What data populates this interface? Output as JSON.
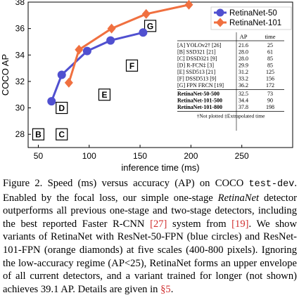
{
  "chart_data": {
    "type": "scatter",
    "xlabel": "inference time (ms)",
    "ylabel": "COCO AP",
    "xlim": [
      40,
      300
    ],
    "ylim": [
      27,
      38
    ],
    "x_ticks": [
      50,
      100,
      150,
      200,
      250
    ],
    "y_ticks": [
      28,
      30,
      32,
      34,
      36,
      38
    ],
    "grid": false,
    "legend_position": "top-right",
    "series": [
      {
        "name": "RetinaNet-50",
        "marker": "circle",
        "color": "#5050d0",
        "x": [
          63,
          73,
          98,
          121,
          153
        ],
        "y": [
          30.5,
          32.5,
          34.3,
          35.1,
          35.7
        ]
      },
      {
        "name": "RetinaNet-101",
        "marker": "diamond",
        "color": "#f07040",
        "x": [
          80,
          90,
          122,
          156,
          198
        ],
        "y": [
          31.9,
          34.4,
          36.0,
          37.1,
          37.8
        ]
      }
    ],
    "point_labels": [
      {
        "label": "B",
        "x": 50,
        "y": 28
      },
      {
        "label": "C",
        "x": 73,
        "y": 28
      },
      {
        "label": "D",
        "x": 73,
        "y": 30
      },
      {
        "label": "E",
        "x": 115,
        "y": 31
      },
      {
        "label": "F",
        "x": 142,
        "y": 33.2
      },
      {
        "label": "G",
        "x": 160,
        "y": 36.2
      }
    ],
    "table": {
      "headers": [
        "",
        "AP",
        "time"
      ],
      "rows": [
        {
          "name": "[A] YOLOv2† [26]",
          "ap": "21.6",
          "time": "25",
          "bold": false
        },
        {
          "name": "[B] SSD321 [21]",
          "ap": "28.0",
          "time": "61",
          "bold": false
        },
        {
          "name": "[C] DSSD321 [9]",
          "ap": "28.0",
          "time": "85",
          "bold": false
        },
        {
          "name": "[D] R-FCN‡ [3]",
          "ap": "29.9",
          "time": "85",
          "bold": false
        },
        {
          "name": "[E] SSD513 [21]",
          "ap": "31.2",
          "time": "125",
          "bold": false
        },
        {
          "name": "[F] DSSD513 [9]",
          "ap": "33.2",
          "time": "156",
          "bold": false
        },
        {
          "name": "[G] FPN FRCN [19]",
          "ap": "36.2",
          "time": "172",
          "bold": false
        },
        {
          "name": "RetinaNet-50-500",
          "ap": "32.5",
          "time": "73",
          "bold": true
        },
        {
          "name": "RetinaNet-101-500",
          "ap": "34.4",
          "time": "90",
          "bold": true
        },
        {
          "name": "RetinaNet-101-800",
          "ap": "37.8",
          "time": "198",
          "bold": true
        }
      ],
      "footnote": "†Not plotted   ‡Extrapolated time"
    }
  },
  "caption": {
    "lead": "Figure 2. Speed (ms) versus accuracy (AP) on COCO ",
    "split": "test-dev",
    "p1": ". Enabled by the focal loss, our simple one-stage ",
    "retinanet": "RetinaNet",
    "p2": " detector outperforms all previous one-stage and two-stage detectors, including the best reported Faster R-CNN ",
    "ref1": "[27]",
    "p3": " system from ",
    "ref2": "[19]",
    "p4": ". We show variants of RetinaNet with ResNet-50-FPN (blue circles) and ResNet-101-FPN (orange diamonds) at five scales (400-800 pixels). Ignoring the low-accuracy regime (AP<25), RetinaNet forms an upper envelope of all current detectors, and a variant trained for longer (not shown) achieves 39.1 AP. Details are given in ",
    "ref3": "§5",
    "p5": "."
  }
}
